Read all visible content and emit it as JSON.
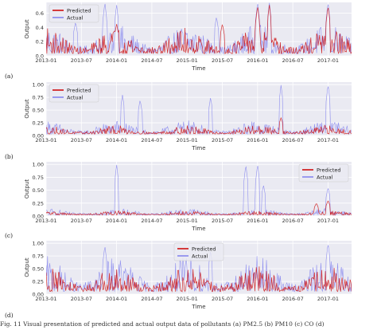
{
  "caption": "Fig. 11 Visual presentation of predicted and actual output data of pollutants (a) PM2.5 (b) PM10 (c) CO (d)",
  "colors": {
    "predicted": "#cc0000",
    "actual": "#8080ee",
    "panel_bg": "#eaeaf2",
    "grid": "#ffffff"
  },
  "chart_data": [
    {
      "type": "line",
      "panel_label": "(a)",
      "xlabel": "Time",
      "ylabel": "Output",
      "x_ticks": [
        "2013-01",
        "2013-07",
        "2014-01",
        "2014-07",
        "2015-01",
        "2015-07",
        "2016-01",
        "2016-07",
        "2017-01"
      ],
      "y_ticks": [
        "0.0",
        "0.2",
        "0.4",
        "0.6"
      ],
      "ylim": [
        0,
        0.75
      ],
      "legend": {
        "position": "top-left",
        "entries": [
          "Predicted",
          "Actual"
        ]
      },
      "grid": true,
      "series": [
        {
          "name": "Predicted",
          "color": "#cc0000",
          "typical_range": [
            0.03,
            0.4
          ],
          "spikes": [
            {
              "x": "2014-01",
              "y": 0.45
            },
            {
              "x": "2015-07",
              "y": 0.45
            },
            {
              "x": "2016-01",
              "y": 0.7
            },
            {
              "x": "2016-03",
              "y": 0.72
            },
            {
              "x": "2017-01",
              "y": 0.7
            }
          ]
        },
        {
          "name": "Actual",
          "color": "#8080ee",
          "typical_range": [
            0.03,
            0.45
          ],
          "spikes": [
            {
              "x": "2013-06",
              "y": 0.48
            },
            {
              "x": "2013-11",
              "y": 0.75
            },
            {
              "x": "2014-01",
              "y": 0.72
            },
            {
              "x": "2015-06",
              "y": 0.55
            },
            {
              "x": "2016-01",
              "y": 0.75
            },
            {
              "x": "2016-03",
              "y": 0.75
            },
            {
              "x": "2017-01",
              "y": 0.75
            }
          ]
        }
      ]
    },
    {
      "type": "line",
      "panel_label": "(b)",
      "xlabel": "Time",
      "ylabel": "Output",
      "x_ticks": [
        "2013-01",
        "2013-07",
        "2014-01",
        "2014-07",
        "2015-01",
        "2015-07",
        "2016-01",
        "2016-07",
        "2017-01"
      ],
      "y_ticks": [
        "0.00",
        "0.25",
        "0.50",
        "0.75",
        "1.00"
      ],
      "ylim": [
        0,
        1.05
      ],
      "legend": {
        "position": "top-left",
        "entries": [
          "Predicted",
          "Actual"
        ]
      },
      "grid": true,
      "series": [
        {
          "name": "Predicted",
          "color": "#cc0000",
          "typical_range": [
            0.03,
            0.2
          ],
          "spikes": [
            {
              "x": "2016-05",
              "y": 0.35
            }
          ]
        },
        {
          "name": "Actual",
          "color": "#8080ee",
          "typical_range": [
            0.03,
            0.3
          ],
          "spikes": [
            {
              "x": "2014-02",
              "y": 0.8
            },
            {
              "x": "2014-05",
              "y": 0.7
            },
            {
              "x": "2015-05",
              "y": 0.75
            },
            {
              "x": "2016-05",
              "y": 1.0
            },
            {
              "x": "2017-01",
              "y": 1.0
            }
          ]
        }
      ]
    },
    {
      "type": "line",
      "panel_label": "(c)",
      "xlabel": "Time",
      "ylabel": "Output",
      "x_ticks": [
        "2013-01",
        "2013-07",
        "2014-01",
        "2014-07",
        "2015-01",
        "2015-07",
        "2016-01",
        "2016-07",
        "2017-01"
      ],
      "y_ticks": [
        "0.00",
        "0.25",
        "0.50",
        "0.75",
        "1.00"
      ],
      "ylim": [
        0,
        1.05
      ],
      "legend": {
        "position": "top-right",
        "entries": [
          "Predicted",
          "Actual"
        ]
      },
      "grid": true,
      "series": [
        {
          "name": "Predicted",
          "color": "#cc0000",
          "typical_range": [
            0.02,
            0.1
          ],
          "spikes": [
            {
              "x": "2016-11",
              "y": 0.25
            },
            {
              "x": "2017-01",
              "y": 0.3
            }
          ]
        },
        {
          "name": "Actual",
          "color": "#8080ee",
          "typical_range": [
            0.02,
            0.15
          ],
          "spikes": [
            {
              "x": "2014-01",
              "y": 1.0
            },
            {
              "x": "2015-11",
              "y": 1.0
            },
            {
              "x": "2016-01",
              "y": 1.0
            },
            {
              "x": "2016-02",
              "y": 0.6
            },
            {
              "x": "2017-01",
              "y": 0.55
            }
          ]
        }
      ]
    },
    {
      "type": "line",
      "panel_label": "(d)",
      "xlabel": "Time",
      "ylabel": "Output",
      "x_ticks": [
        "2013-01",
        "2013-07",
        "2014-01",
        "2014-07",
        "2015-01",
        "2015-07",
        "2016-01",
        "2016-07",
        "2017-01"
      ],
      "y_ticks": [
        "0.00",
        "0.25",
        "0.50",
        "0.75",
        "1.00"
      ],
      "ylim": [
        0,
        1.05
      ],
      "legend": {
        "position": "top-center",
        "entries": [
          "Predicted",
          "Actual"
        ]
      },
      "grid": true,
      "series": [
        {
          "name": "Predicted",
          "color": "#cc0000",
          "typical_range": [
            0.05,
            0.55
          ],
          "spikes": []
        },
        {
          "name": "Actual",
          "color": "#8080ee",
          "typical_range": [
            0.05,
            0.75
          ],
          "spikes": [
            {
              "x": "2013-11",
              "y": 0.95
            },
            {
              "x": "2015-05",
              "y": 0.85
            },
            {
              "x": "2017-01",
              "y": 1.0
            }
          ]
        }
      ]
    }
  ]
}
